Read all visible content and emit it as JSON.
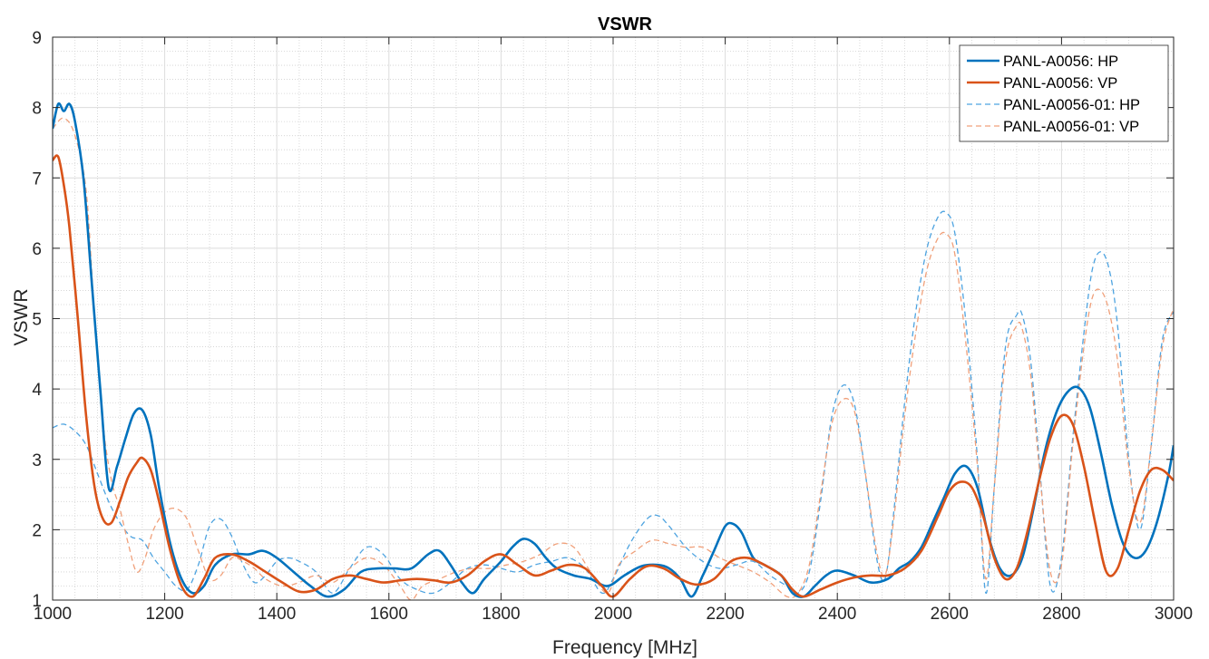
{
  "chart_data": {
    "type": "line",
    "title": "VSWR",
    "xlabel": "Frequency [MHz]",
    "ylabel": "VSWR",
    "xlim": [
      1000,
      3000
    ],
    "ylim": [
      1,
      9
    ],
    "xticks": [
      1000,
      1200,
      1400,
      1600,
      1800,
      2000,
      2200,
      2400,
      2600,
      2800,
      3000
    ],
    "yticks": [
      1,
      2,
      3,
      4,
      5,
      6,
      7,
      8,
      9
    ],
    "grid": true,
    "minor_grid": true,
    "legend_position": "top-right",
    "series": [
      {
        "name": "PANL-A0056: HP",
        "color": "#0072BD",
        "style": "solid",
        "x": [
          1000,
          1010,
          1020,
          1030,
          1040,
          1055,
          1070,
          1085,
          1100,
          1115,
          1130,
          1145,
          1160,
          1175,
          1190,
          1210,
          1230,
          1250,
          1270,
          1290,
          1320,
          1350,
          1375,
          1400,
          1430,
          1460,
          1490,
          1520,
          1550,
          1580,
          1610,
          1640,
          1670,
          1690,
          1710,
          1730,
          1750,
          1770,
          1800,
          1820,
          1840,
          1860,
          1880,
          1900,
          1930,
          1960,
          1990,
          2020,
          2050,
          2080,
          2100,
          2120,
          2140,
          2160,
          2180,
          2200,
          2215,
          2230,
          2250,
          2270,
          2300,
          2320,
          2340,
          2360,
          2380,
          2400,
          2430,
          2460,
          2490,
          2510,
          2530,
          2550,
          2570,
          2590,
          2610,
          2630,
          2650,
          2670,
          2690,
          2710,
          2730,
          2750,
          2770,
          2790,
          2810,
          2830,
          2850,
          2870,
          2890,
          2910,
          2930,
          2950,
          2970,
          2990,
          3000
        ],
        "y": [
          7.7,
          8.05,
          7.95,
          8.05,
          7.8,
          7.0,
          5.5,
          4.0,
          2.6,
          2.9,
          3.3,
          3.65,
          3.7,
          3.35,
          2.6,
          1.8,
          1.3,
          1.1,
          1.2,
          1.5,
          1.65,
          1.65,
          1.7,
          1.6,
          1.4,
          1.2,
          1.05,
          1.15,
          1.4,
          1.45,
          1.45,
          1.45,
          1.65,
          1.7,
          1.5,
          1.25,
          1.1,
          1.3,
          1.55,
          1.75,
          1.87,
          1.8,
          1.6,
          1.45,
          1.35,
          1.3,
          1.2,
          1.35,
          1.48,
          1.5,
          1.45,
          1.3,
          1.05,
          1.35,
          1.7,
          2.05,
          2.08,
          1.95,
          1.6,
          1.5,
          1.35,
          1.1,
          1.05,
          1.2,
          1.35,
          1.42,
          1.35,
          1.25,
          1.3,
          1.45,
          1.55,
          1.75,
          2.1,
          2.45,
          2.8,
          2.9,
          2.6,
          1.9,
          1.45,
          1.35,
          1.6,
          2.3,
          3.1,
          3.65,
          3.95,
          4.02,
          3.75,
          3.1,
          2.35,
          1.8,
          1.6,
          1.7,
          2.1,
          2.75,
          3.2
        ]
      },
      {
        "name": "PANL-A0056: VP",
        "color": "#D95319",
        "style": "solid",
        "x": [
          1000,
          1010,
          1020,
          1030,
          1045,
          1060,
          1075,
          1090,
          1105,
          1120,
          1135,
          1150,
          1160,
          1175,
          1190,
          1210,
          1230,
          1250,
          1270,
          1290,
          1320,
          1350,
          1380,
          1410,
          1440,
          1470,
          1500,
          1530,
          1560,
          1590,
          1620,
          1650,
          1680,
          1710,
          1740,
          1770,
          1800,
          1830,
          1860,
          1890,
          1920,
          1950,
          1980,
          2000,
          2030,
          2060,
          2090,
          2120,
          2150,
          2180,
          2210,
          2240,
          2270,
          2300,
          2320,
          2340,
          2370,
          2400,
          2430,
          2460,
          2490,
          2520,
          2550,
          2580,
          2600,
          2620,
          2640,
          2660,
          2680,
          2700,
          2720,
          2740,
          2760,
          2780,
          2800,
          2820,
          2840,
          2860,
          2880,
          2900,
          2920,
          2940,
          2960,
          2980,
          3000
        ],
        "y": [
          7.25,
          7.3,
          6.9,
          6.3,
          5.0,
          3.6,
          2.6,
          2.15,
          2.1,
          2.4,
          2.75,
          2.95,
          3.02,
          2.85,
          2.4,
          1.7,
          1.2,
          1.05,
          1.3,
          1.6,
          1.65,
          1.55,
          1.4,
          1.25,
          1.12,
          1.15,
          1.3,
          1.35,
          1.3,
          1.25,
          1.28,
          1.3,
          1.28,
          1.25,
          1.35,
          1.55,
          1.65,
          1.5,
          1.35,
          1.42,
          1.5,
          1.45,
          1.2,
          1.05,
          1.3,
          1.48,
          1.45,
          1.3,
          1.22,
          1.3,
          1.55,
          1.6,
          1.5,
          1.35,
          1.15,
          1.05,
          1.15,
          1.25,
          1.32,
          1.35,
          1.35,
          1.45,
          1.7,
          2.2,
          2.55,
          2.68,
          2.6,
          2.2,
          1.6,
          1.3,
          1.45,
          2.0,
          2.7,
          3.3,
          3.62,
          3.5,
          2.9,
          2.1,
          1.4,
          1.45,
          2.0,
          2.55,
          2.85,
          2.85,
          2.7
        ]
      },
      {
        "name": "PANL-A0056-01: HP",
        "color": "#4DA3E0",
        "style": "dashed",
        "x": [
          1000,
          1020,
          1040,
          1060,
          1080,
          1100,
          1120,
          1140,
          1160,
          1180,
          1200,
          1220,
          1240,
          1260,
          1280,
          1300,
          1320,
          1340,
          1360,
          1380,
          1400,
          1420,
          1440,
          1470,
          1500,
          1530,
          1560,
          1590,
          1620,
          1650,
          1680,
          1710,
          1740,
          1770,
          1800,
          1830,
          1860,
          1890,
          1920,
          1950,
          1980,
          2000,
          2030,
          2060,
          2080,
          2100,
          2130,
          2160,
          2190,
          2220,
          2250,
          2280,
          2310,
          2330,
          2350,
          2370,
          2390,
          2410,
          2430,
          2450,
          2470,
          2485,
          2500,
          2520,
          2540,
          2560,
          2580,
          2595,
          2610,
          2630,
          2650,
          2665,
          2680,
          2700,
          2720,
          2730,
          2745,
          2760,
          2780,
          2800,
          2820,
          2840,
          2855,
          2870,
          2885,
          2900,
          2920,
          2940,
          2960,
          2980,
          3000
        ],
        "y": [
          3.45,
          3.5,
          3.4,
          3.2,
          2.8,
          2.4,
          2.1,
          1.9,
          1.85,
          1.6,
          1.4,
          1.2,
          1.15,
          1.5,
          2.05,
          2.15,
          1.9,
          1.5,
          1.25,
          1.35,
          1.55,
          1.6,
          1.55,
          1.4,
          1.1,
          1.45,
          1.75,
          1.65,
          1.3,
          1.15,
          1.1,
          1.25,
          1.45,
          1.5,
          1.45,
          1.4,
          1.5,
          1.55,
          1.6,
          1.45,
          1.1,
          1.3,
          1.8,
          2.15,
          2.2,
          2.05,
          1.75,
          1.55,
          1.45,
          1.5,
          1.55,
          1.35,
          1.2,
          1.1,
          1.4,
          2.4,
          3.6,
          4.05,
          3.8,
          2.8,
          1.6,
          1.3,
          2.2,
          3.8,
          5.1,
          6.0,
          6.45,
          6.5,
          6.2,
          4.9,
          3.0,
          1.1,
          2.6,
          4.6,
          5.05,
          5.05,
          4.4,
          3.0,
          1.2,
          1.6,
          3.3,
          4.8,
          5.7,
          5.95,
          5.7,
          4.9,
          3.0,
          2.0,
          3.2,
          4.7,
          5.1
        ]
      },
      {
        "name": "PANL-A0056-01: VP",
        "color": "#F0A07A",
        "style": "dashed",
        "x": [
          1000,
          1020,
          1040,
          1060,
          1075,
          1090,
          1105,
          1120,
          1135,
          1150,
          1165,
          1180,
          1200,
          1220,
          1240,
          1260,
          1280,
          1300,
          1320,
          1340,
          1360,
          1380,
          1410,
          1440,
          1470,
          1500,
          1530,
          1560,
          1590,
          1620,
          1640,
          1660,
          1690,
          1720,
          1750,
          1780,
          1810,
          1840,
          1870,
          1900,
          1930,
          1960,
          1990,
          2010,
          2040,
          2070,
          2100,
          2130,
          2160,
          2190,
          2220,
          2250,
          2280,
          2310,
          2330,
          2350,
          2370,
          2390,
          2410,
          2430,
          2450,
          2470,
          2485,
          2500,
          2520,
          2540,
          2560,
          2580,
          2595,
          2610,
          2630,
          2650,
          2665,
          2680,
          2700,
          2720,
          2730,
          2745,
          2760,
          2780,
          2800,
          2820,
          2840,
          2855,
          2870,
          2885,
          2900,
          2920,
          2940,
          2960,
          2980,
          3000
        ],
        "y": [
          7.7,
          7.85,
          7.6,
          6.8,
          5.0,
          3.5,
          2.7,
          2.3,
          1.8,
          1.4,
          1.6,
          2.0,
          2.25,
          2.3,
          2.15,
          1.7,
          1.3,
          1.35,
          1.6,
          1.55,
          1.45,
          1.3,
          1.2,
          1.25,
          1.35,
          1.25,
          1.45,
          1.6,
          1.5,
          1.2,
          1.0,
          1.2,
          1.3,
          1.4,
          1.45,
          1.45,
          1.5,
          1.55,
          1.65,
          1.8,
          1.75,
          1.4,
          1.1,
          1.5,
          1.7,
          1.85,
          1.8,
          1.75,
          1.75,
          1.6,
          1.5,
          1.4,
          1.25,
          1.05,
          1.1,
          1.5,
          2.5,
          3.5,
          3.85,
          3.7,
          2.8,
          1.7,
          1.35,
          2.1,
          3.6,
          4.8,
          5.7,
          6.15,
          6.2,
          5.9,
          4.6,
          2.9,
          1.3,
          2.6,
          4.4,
          4.9,
          4.85,
          4.2,
          2.9,
          1.4,
          1.5,
          3.2,
          4.6,
          5.3,
          5.4,
          5.1,
          4.4,
          2.9,
          2.1,
          3.2,
          4.6,
          5.15
        ]
      }
    ]
  }
}
